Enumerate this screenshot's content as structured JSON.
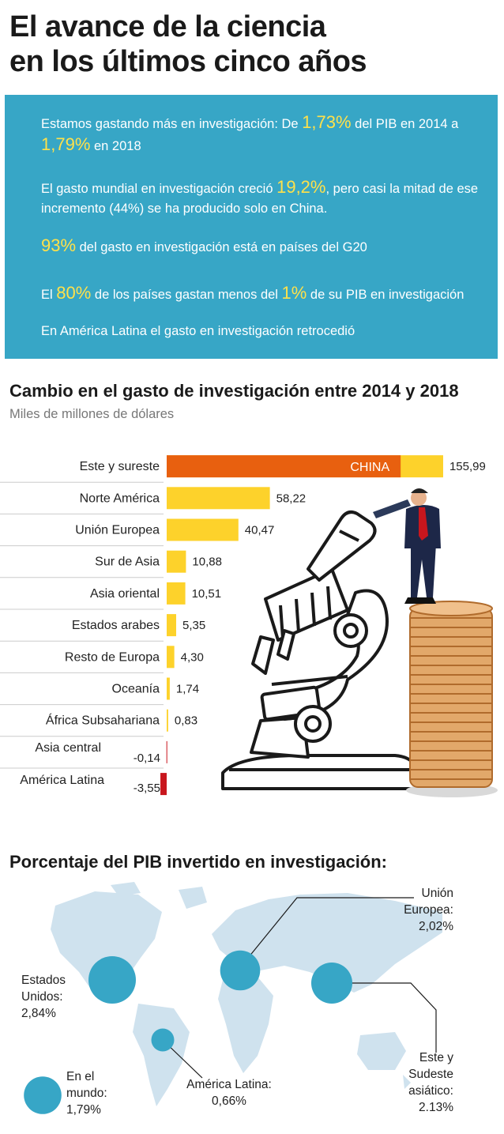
{
  "title": "El avance de la ciencia\nen los últimos cinco años",
  "facts": {
    "f1_a": "Estamos gastando más en investigación: De ",
    "f1_v1": "1,73%",
    "f1_b": " del PIB en 2014 a ",
    "f1_v2": "1,79%",
    "f1_c": " en 2018",
    "f2_a": "El gasto mundial en investigación creció ",
    "f2_v1": "19,2%",
    "f2_b": ", pero casi la mitad de ese incremento (44%) se ha producido solo en China.",
    "f3_v1": "93%",
    "f3_a": " del gasto en investigación está en países del G20",
    "f4_a": "El ",
    "f4_v1": "80%",
    "f4_b": " de los países gastan menos del ",
    "f4_v2": "1%",
    "f4_c": " de su PIB en investigación",
    "f5": "En América Latina el gasto en investigación retrocedió"
  },
  "chart_data": [
    {
      "type": "bar",
      "orientation": "horizontal",
      "title": "Cambio en el gasto de investigación entre 2014 y 2018",
      "subtitle": "Miles de millones de dólares",
      "categories": [
        "Este y sureste",
        "Norte América",
        "Unión Europea",
        "Sur de Asia",
        "Asia oriental",
        "Estados arabes",
        "Resto de Europa",
        "Oceanía",
        "África Subsahariana",
        "Asia central",
        "América Latina"
      ],
      "values": [
        155.99,
        58.22,
        40.47,
        10.88,
        10.51,
        5.35,
        4.3,
        1.74,
        0.83,
        -0.14,
        -3.55
      ],
      "value_labels": [
        "155,99",
        "58,22",
        "40,47",
        "10,88",
        "10,51",
        "5,35",
        "4,30",
        "1,74",
        "0,83",
        "-0,14",
        "-3,55"
      ],
      "annotation": {
        "label": "CHINA",
        "category": "Este y sureste",
        "value": 132.0
      },
      "colors": {
        "positive": "#fdd22b",
        "negative": "#c8161d",
        "china": "#e8600f"
      }
    },
    {
      "type": "bubble-map",
      "title": "Porcentaje del PIB invertido en investigación:",
      "regions": [
        {
          "name": "Estados Unidos",
          "label": "Estados\nUnidos:\n2,84%",
          "value": 2.84
        },
        {
          "name": "Unión Europea",
          "label": "Unión\nEuropea:\n2,02%",
          "value": 2.02
        },
        {
          "name": "Este y Sudeste asiático",
          "label": "Este y\nSudeste\nasiático:\n2.13%",
          "value": 2.13
        },
        {
          "name": "América Latina",
          "label": "América Latina:\n0,66%",
          "value": 0.66
        },
        {
          "name": "En el mundo",
          "label": "En el\nmundo:\n1,79%",
          "value": 1.79
        }
      ],
      "colors": {
        "bubble": "#37a6c6",
        "land": "#cfe2ee"
      }
    }
  ]
}
